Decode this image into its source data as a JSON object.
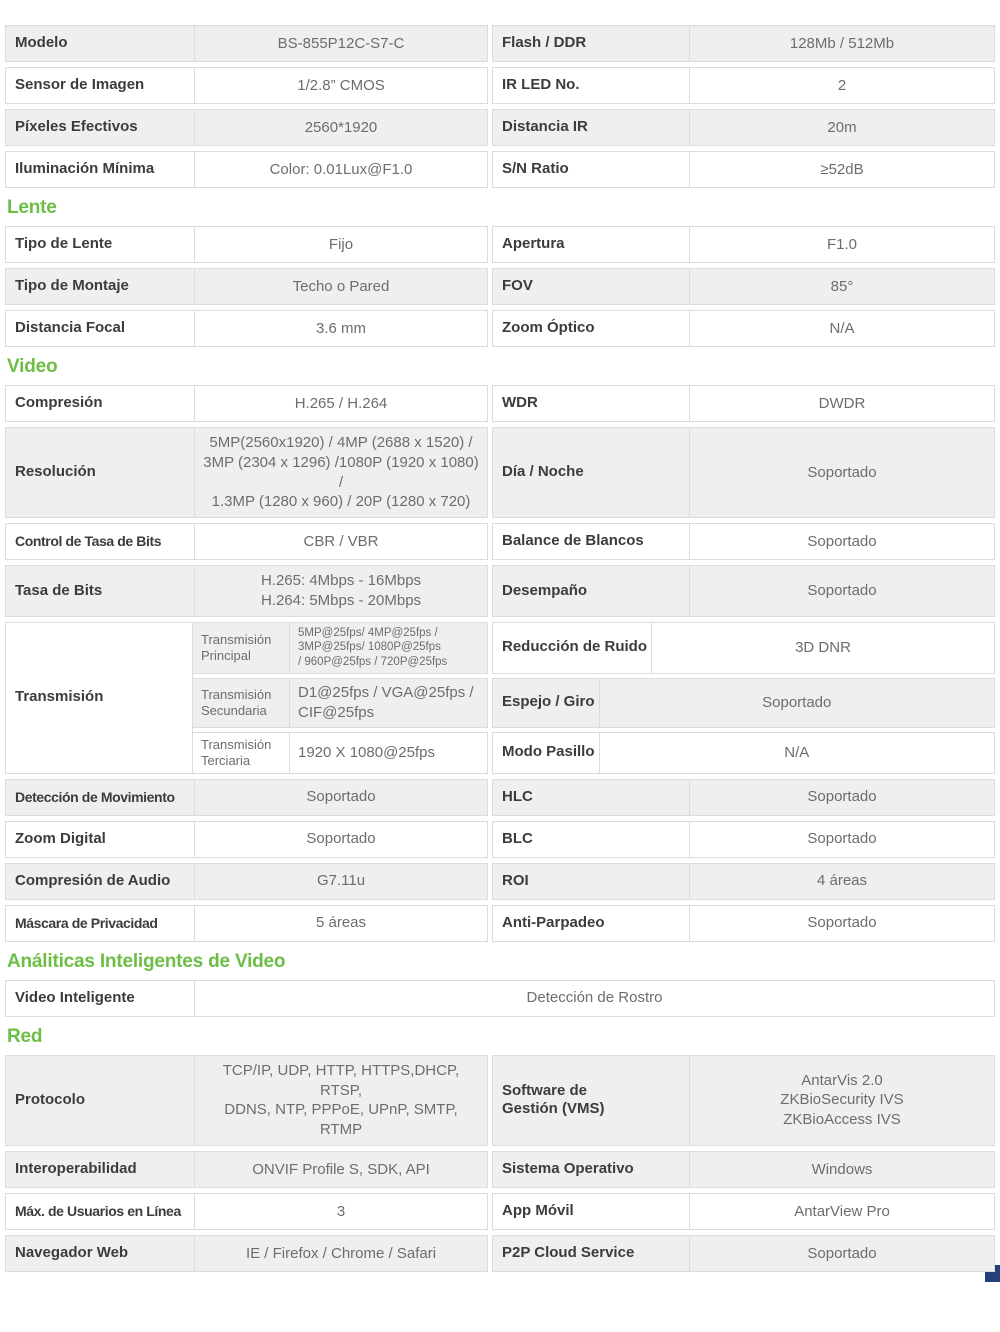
{
  "accent": {
    "green": "#6CBE45",
    "navy": "#24407A",
    "shade": "#EFEFEF",
    "border": "#DCDCDC"
  },
  "sections": [
    {
      "id": "general",
      "rows": [
        {
          "type": "quad",
          "ll": "Modelo",
          "lv": "BS-855P12C-S7-C",
          "rl": "Flash / DDR",
          "rv": "128Mb / 512Mb",
          "shade": true
        },
        {
          "type": "quad",
          "ll": "Sensor de Imagen",
          "lv": "1/2.8” CMOS",
          "rl": "IR LED No.",
          "rv": "2",
          "shade": false
        },
        {
          "type": "quad",
          "ll": "Píxeles Efectivos",
          "lv": "2560*1920",
          "rl": "Distancia IR",
          "rv": "20m",
          "shade": true
        },
        {
          "type": "quad",
          "ll": "Iluminación Mínima",
          "lv": "Color: 0.01Lux@F1.0",
          "rl": "S/N Ratio",
          "rv": "≥52dB",
          "shade": false
        }
      ]
    },
    {
      "id": "lente",
      "header": "Lente",
      "rows": [
        {
          "type": "quad",
          "ll": "Tipo de Lente",
          "lv": "Fijo",
          "rl": "Apertura",
          "rv": "F1.0",
          "shade": false
        },
        {
          "type": "quad",
          "ll": "Tipo de Montaje",
          "lv": "Techo o Pared",
          "rl": "FOV",
          "rv": "85°",
          "shade": true
        },
        {
          "type": "quad",
          "ll": "Distancia Focal",
          "lv": "3.6 mm",
          "rl": "Zoom Óptico",
          "rv": "N/A",
          "shade": false
        }
      ]
    },
    {
      "id": "video",
      "header": "Video",
      "rows": [
        {
          "type": "quad",
          "ll": "Compresión",
          "lv": "H.265 / H.264",
          "rl": "WDR",
          "rv": "DWDR",
          "shade": false
        },
        {
          "type": "quad",
          "ll": "Resolución",
          "lv": [
            "5MP(2560x1920) / 4MP (2688 x 1520) /",
            "3MP (2304 x 1296) /1080P (1920 x 1080) /",
            "1.3MP (1280 x 960) / 20P (1280 x 720)"
          ],
          "rl": "Día / Noche",
          "rv": "Soportado",
          "shade": true
        },
        {
          "type": "quad",
          "ll": "Control de Tasa de Bits",
          "lv": "CBR / VBR",
          "rl": "Balance de Blancos",
          "rv": "Soportado",
          "shade": false
        },
        {
          "type": "quad",
          "ll": "Tasa de Bits",
          "lv": [
            "H.265: 4Mbps - 16Mbps",
            "H.264: 5Mbps - 20Mbps"
          ],
          "rl": "Desempaño",
          "rv": "Soportado",
          "shade": true
        },
        {
          "type": "group",
          "label": "Transmisión",
          "subrows": [
            {
              "label": "Transmisión Principal",
              "value": [
                "5MP@25fps/ 4MP@25fps /",
                "3MP@25fps/ 1080P@25fps",
                "/ 960P@25fps / 720P@25fps"
              ],
              "shade": true,
              "small": true
            },
            {
              "label": "Transmisión Secundaria",
              "value": "D1@25fps / VGA@25fps / CIF@25fps",
              "shade": true,
              "small": false
            },
            {
              "label": "Transmisión Terciaria",
              "value": "1920 X 1080@25fps",
              "shade": false,
              "small": false
            }
          ],
          "right_rows": [
            {
              "label": "Reducción de Ruido",
              "value": "3D DNR",
              "shade": false
            },
            {
              "label": "Espejo / Giro",
              "value": "Soportado",
              "shade": true
            },
            {
              "label": "Modo Pasillo",
              "value": "N/A",
              "shade": false
            }
          ]
        },
        {
          "type": "quad",
          "ll": "Detección de Movimiento",
          "lv": "Soportado",
          "rl": "HLC",
          "rv": "Soportado",
          "shade": true
        },
        {
          "type": "quad",
          "ll": "Zoom Digital",
          "lv": "Soportado",
          "rl": "BLC",
          "rv": "Soportado",
          "shade": false
        },
        {
          "type": "quad",
          "ll": "Compresión de Audio",
          "lv": "G7.11u",
          "rl": "ROI",
          "rv": "4 áreas",
          "shade": true
        },
        {
          "type": "quad",
          "ll": "Máscara de Privacidad",
          "lv": "5 áreas",
          "rl": "Anti-Parpadeo",
          "rv": "Soportado",
          "shade": false
        }
      ]
    },
    {
      "id": "analiticas",
      "header": "Análiticas Inteligentes de Video",
      "rows": [
        {
          "type": "full",
          "ll": "Video Inteligente",
          "lv": "Detección de Rostro",
          "shade": false
        }
      ]
    },
    {
      "id": "red",
      "header": "Red",
      "rows": [
        {
          "type": "quad",
          "ll": "Protocolo",
          "lv": [
            "TCP/IP, UDP, HTTP, HTTPS,DHCP, RTSP,",
            "DDNS, NTP, PPPoE, UPnP, SMTP, RTMP"
          ],
          "rl": [
            "Software de",
            "Gestión (VMS)"
          ],
          "rv": [
            "AntarVis 2.0",
            "ZKBioSecurity IVS",
            "ZKBioAccess IVS"
          ],
          "shade": true
        },
        {
          "type": "quad",
          "ll": "Interoperabilidad",
          "lv": "ONVIF Profile S, SDK, API",
          "rl": "Sistema Operativo",
          "rv": "Windows",
          "shade": true
        },
        {
          "type": "quad",
          "ll": "Máx. de Usuarios en Línea",
          "lv": "3",
          "rl": "App Móvil",
          "rv": "AntarView Pro",
          "shade": false
        },
        {
          "type": "quad",
          "ll": "Navegador Web",
          "lv": "IE / Firefox / Chrome / Safari",
          "rl": "P2P Cloud Service",
          "rv": "Soportado",
          "shade": true
        }
      ]
    }
  ]
}
